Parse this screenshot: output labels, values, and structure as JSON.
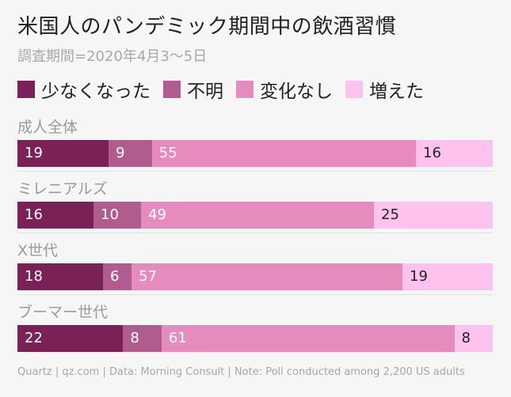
{
  "title": "米国人のパンデミック期間中の飲酒習慣",
  "subtitle": "調査期間=2020年4月3〜5日",
  "footer": "Quartz | qz.com | Data: Morning Consult | Note: Poll conducted among 2,200 US adults",
  "colors": {
    "少なくなった": "#7a2157",
    "不明": "#b05c8e",
    "変化なし": "#e58bbd",
    "増えた": "#fdc3ee",
    "background": "#f6f6f6"
  },
  "chart_data": {
    "type": "bar",
    "orientation": "horizontal",
    "stacked": true,
    "unit": "percent",
    "legend_position": "top",
    "categories": [
      "成人全体",
      "ミレニアルズ",
      "X世代",
      "ブーマー世代"
    ],
    "series": [
      {
        "name": "少なくなった",
        "values": [
          19,
          16,
          18,
          22
        ]
      },
      {
        "name": "不明",
        "values": [
          9,
          10,
          6,
          8
        ]
      },
      {
        "name": "変化なし",
        "values": [
          55,
          49,
          57,
          61
        ]
      },
      {
        "name": "増えた",
        "values": [
          16,
          25,
          19,
          8
        ]
      }
    ]
  }
}
